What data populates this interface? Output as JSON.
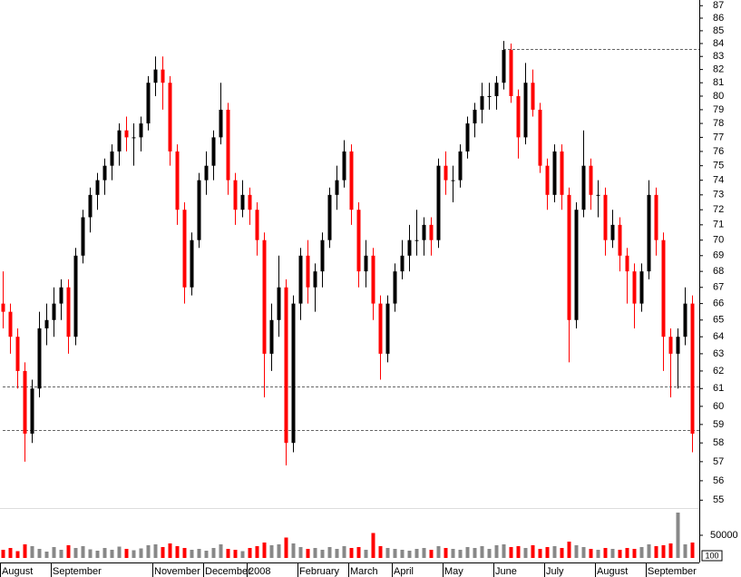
{
  "chart_data": {
    "type": "candlestick",
    "ylim": [
      54.6,
      87.46
    ],
    "log_scale": true,
    "yticks": [
      55,
      56,
      57,
      58,
      59,
      60,
      61,
      62,
      63,
      64,
      65,
      66,
      67,
      68,
      69,
      70,
      71,
      72,
      73,
      74,
      75,
      76,
      77,
      78,
      79,
      80,
      81,
      82,
      83,
      84,
      85,
      86,
      87
    ],
    "up_color": "#000000",
    "down_color": "#ff0000",
    "candles": [
      [
        66,
        68,
        64.5,
        65.5
      ],
      [
        65.5,
        66,
        63,
        64
      ],
      [
        64,
        64.5,
        61,
        62
      ],
      [
        62,
        62.5,
        57,
        58.5
      ],
      [
        58.5,
        61.5,
        58,
        61
      ],
      [
        61,
        65.5,
        60.5,
        64.5
      ],
      [
        64.5,
        66,
        63.5,
        65
      ],
      [
        65,
        67,
        64,
        66
      ],
      [
        66,
        67.5,
        65,
        67
      ],
      [
        67,
        67.5,
        63,
        64
      ],
      [
        64,
        69.5,
        63.5,
        69
      ],
      [
        69,
        72,
        68.5,
        71.5
      ],
      [
        71.5,
        73.5,
        70.5,
        73
      ],
      [
        73,
        74.5,
        72,
        74
      ],
      [
        74,
        75.5,
        73,
        75
      ],
      [
        75,
        76.5,
        74,
        76
      ],
      [
        76,
        78,
        75,
        77.5
      ],
      [
        77.5,
        78.5,
        76,
        77
      ],
      [
        77,
        78,
        75,
        77
      ],
      [
        77,
        78.5,
        76,
        78
      ],
      [
        78,
        81.5,
        77.5,
        81
      ],
      [
        81,
        83,
        80,
        82
      ],
      [
        82,
        83,
        79,
        81
      ],
      [
        81,
        81.5,
        75,
        76
      ],
      [
        76,
        76.5,
        71,
        72
      ],
      [
        72,
        72.5,
        66,
        67
      ],
      [
        67,
        70.5,
        66.5,
        70
      ],
      [
        70,
        74.5,
        69.5,
        74
      ],
      [
        74,
        76,
        73,
        75
      ],
      [
        75,
        77.5,
        74,
        77
      ],
      [
        77,
        81,
        76.5,
        79
      ],
      [
        79,
        79.5,
        73,
        74
      ],
      [
        74,
        74.5,
        71,
        72
      ],
      [
        72,
        74,
        71.5,
        73
      ],
      [
        73,
        73.5,
        71,
        72
      ],
      [
        72,
        72.5,
        69,
        70
      ],
      [
        70,
        70.5,
        60.5,
        63
      ],
      [
        63,
        66,
        62,
        65
      ],
      [
        65,
        69,
        64,
        67
      ],
      [
        67,
        67.5,
        56.8,
        58
      ],
      [
        58,
        66.5,
        57.5,
        66
      ],
      [
        66,
        69.5,
        65,
        69
      ],
      [
        69,
        70,
        66,
        67
      ],
      [
        67,
        68.5,
        65.5,
        68
      ],
      [
        68,
        70.5,
        67,
        70
      ],
      [
        70,
        73.5,
        69.5,
        73
      ],
      [
        73,
        75,
        72,
        74
      ],
      [
        74,
        76.8,
        73.5,
        76
      ],
      [
        76,
        76.5,
        71,
        72
      ],
      [
        72,
        72.5,
        67,
        68
      ],
      [
        68,
        70,
        67,
        69
      ],
      [
        69,
        69.5,
        65,
        66
      ],
      [
        66,
        66.5,
        61.5,
        63
      ],
      [
        63,
        66.5,
        62.5,
        66
      ],
      [
        66,
        68.5,
        65.5,
        68
      ],
      [
        68,
        70,
        67.5,
        69
      ],
      [
        69,
        71,
        68,
        70
      ],
      [
        70,
        72,
        69,
        70
      ],
      [
        70,
        71.5,
        69,
        71
      ],
      [
        71,
        71.5,
        69,
        70
      ],
      [
        70,
        75.5,
        69.5,
        75
      ],
      [
        75,
        76,
        73,
        74
      ],
      [
        74,
        75,
        72.5,
        74
      ],
      [
        74,
        76.5,
        73.5,
        76
      ],
      [
        76,
        78.5,
        75.5,
        78
      ],
      [
        78,
        79.5,
        77,
        79
      ],
      [
        79,
        81,
        78,
        80
      ],
      [
        80,
        81,
        79,
        80
      ],
      [
        80,
        81.5,
        79,
        81
      ],
      [
        81,
        84.2,
        80.5,
        83.5
      ],
      [
        83.5,
        84,
        79.5,
        80
      ],
      [
        80,
        80.5,
        75.5,
        77
      ],
      [
        77,
        82.5,
        76.5,
        81
      ],
      [
        81,
        82,
        78.5,
        79
      ],
      [
        79,
        79.5,
        74.5,
        75
      ],
      [
        75,
        75.5,
        72,
        73
      ],
      [
        73,
        76.5,
        72.5,
        76
      ],
      [
        76,
        76.5,
        72,
        73
      ],
      [
        73,
        73.5,
        62.5,
        65
      ],
      [
        65,
        72.5,
        64.5,
        72
      ],
      [
        72,
        77.5,
        71.5,
        75
      ],
      [
        75,
        75.5,
        72,
        73
      ],
      [
        73,
        74,
        71.5,
        73
      ],
      [
        73,
        73.5,
        69,
        70
      ],
      [
        70,
        72,
        69.5,
        71
      ],
      [
        71,
        71.5,
        68,
        69
      ],
      [
        69,
        69.5,
        66,
        68
      ],
      [
        68,
        68.5,
        64.5,
        66
      ],
      [
        66,
        68.5,
        65.5,
        68
      ],
      [
        68,
        74,
        67.5,
        73
      ],
      [
        73,
        73.5,
        69,
        70
      ],
      [
        70,
        70.5,
        62,
        64
      ],
      [
        64,
        64.5,
        60.5,
        63
      ],
      [
        63,
        64.5,
        61,
        64
      ],
      [
        64,
        67,
        63.5,
        66
      ],
      [
        66,
        66.5,
        57.5,
        58.5
      ]
    ],
    "volume": [
      18000,
      22000,
      15000,
      30000,
      26000,
      20000,
      14000,
      24000,
      18000,
      28000,
      22000,
      26000,
      19000,
      16000,
      22000,
      18000,
      25000,
      20000,
      17000,
      21000,
      28000,
      30000,
      24000,
      32000,
      26000,
      22000,
      18000,
      20000,
      16000,
      22000,
      30000,
      20000,
      18000,
      15000,
      22000,
      26000,
      34000,
      28000,
      30000,
      45000,
      32000,
      24000,
      20000,
      22000,
      18000,
      24000,
      20000,
      26000,
      22000,
      24000,
      18000,
      55000,
      26000,
      22000,
      20000,
      18000,
      16000,
      20000,
      22000,
      18000,
      26000,
      22000,
      20000,
      18000,
      24000,
      22000,
      26000,
      20000,
      28000,
      30000,
      24000,
      26000,
      22000,
      28000,
      20000,
      24000,
      26000,
      22000,
      36000,
      28000,
      24000,
      20000,
      18000,
      22000,
      20000,
      18000,
      22000,
      20000,
      24000,
      30000,
      26000,
      28000,
      32000,
      100000,
      30000,
      34000
    ],
    "vol_ylim": [
      0,
      100000
    ],
    "vol_yticks": [
      50000
    ],
    "vol_unit": "100",
    "levels": [
      {
        "value": 83.6,
        "from": 69
      },
      {
        "value": 61.1,
        "from": 0
      },
      {
        "value": 58.7,
        "from": 0
      }
    ],
    "months": [
      {
        "label": "August",
        "index": 0
      },
      {
        "label": "September",
        "index": 7
      },
      {
        "label": "November",
        "index": 21
      },
      {
        "label": "December",
        "index": 28
      },
      {
        "label": "2008",
        "index": 34
      },
      {
        "label": "February",
        "index": 41
      },
      {
        "label": "March",
        "index": 48
      },
      {
        "label": "April",
        "index": 54
      },
      {
        "label": "May",
        "index": 61
      },
      {
        "label": "June",
        "index": 68
      },
      {
        "label": "July",
        "index": 75
      },
      {
        "label": "August",
        "index": 82
      },
      {
        "label": "September",
        "index": 89
      }
    ]
  }
}
